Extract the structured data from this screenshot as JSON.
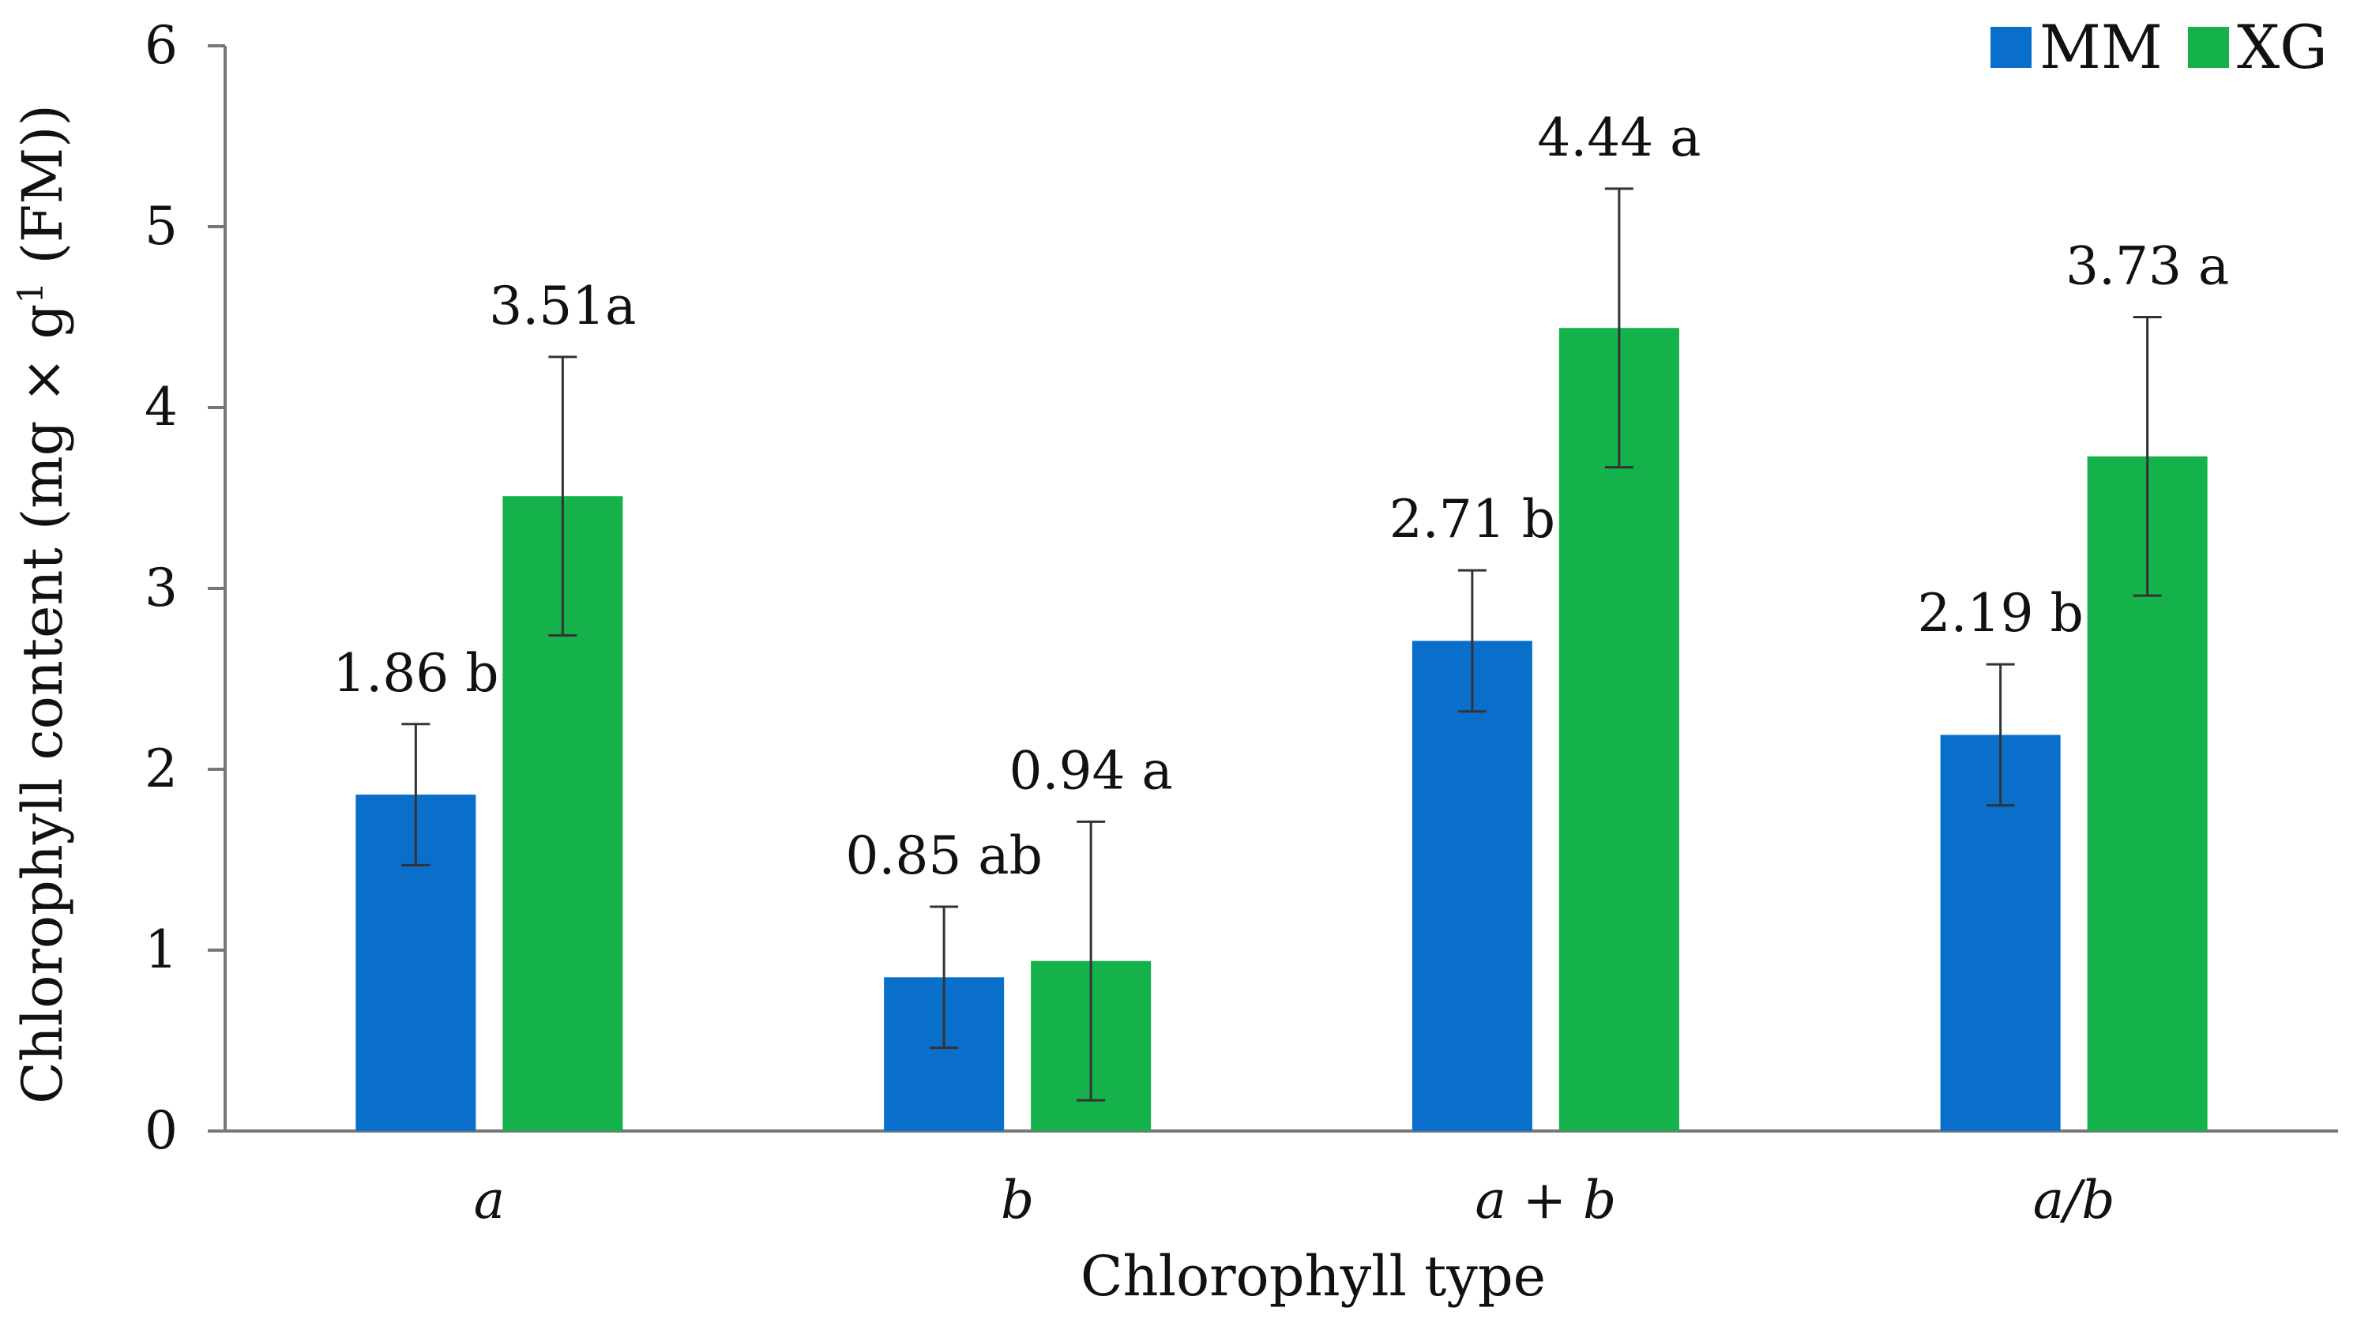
{
  "chart_data": {
    "type": "bar",
    "title": "",
    "xlabel": "Chlorophyll type",
    "ylabel_main": "Chlorophyll content (mg × g",
    "ylabel_sup": "1",
    "ylabel_end": " (FM))",
    "ylim": [
      0,
      6
    ],
    "yticks": [
      0,
      1,
      2,
      3,
      4,
      5,
      6
    ],
    "grid": false,
    "legend_position": "top-right",
    "categories": [
      "a",
      "b",
      "a + b",
      "a/b"
    ],
    "series": [
      {
        "name": "MM",
        "color": "#0a6fcb",
        "values": [
          1.86,
          0.85,
          2.71,
          2.19
        ],
        "errors": [
          0.39,
          0.39,
          0.39,
          0.39
        ],
        "labels": [
          "1.86 b",
          "0.85 ab",
          "2.71 b",
          "2.19 b"
        ]
      },
      {
        "name": "XG",
        "color": "#15b14a",
        "values": [
          3.51,
          0.94,
          4.44,
          3.73
        ],
        "errors": [
          0.77,
          0.77,
          0.77,
          0.77
        ],
        "labels": [
          "3.51a",
          "0.94 a",
          "4.44 a",
          "3.73 a"
        ]
      }
    ]
  }
}
